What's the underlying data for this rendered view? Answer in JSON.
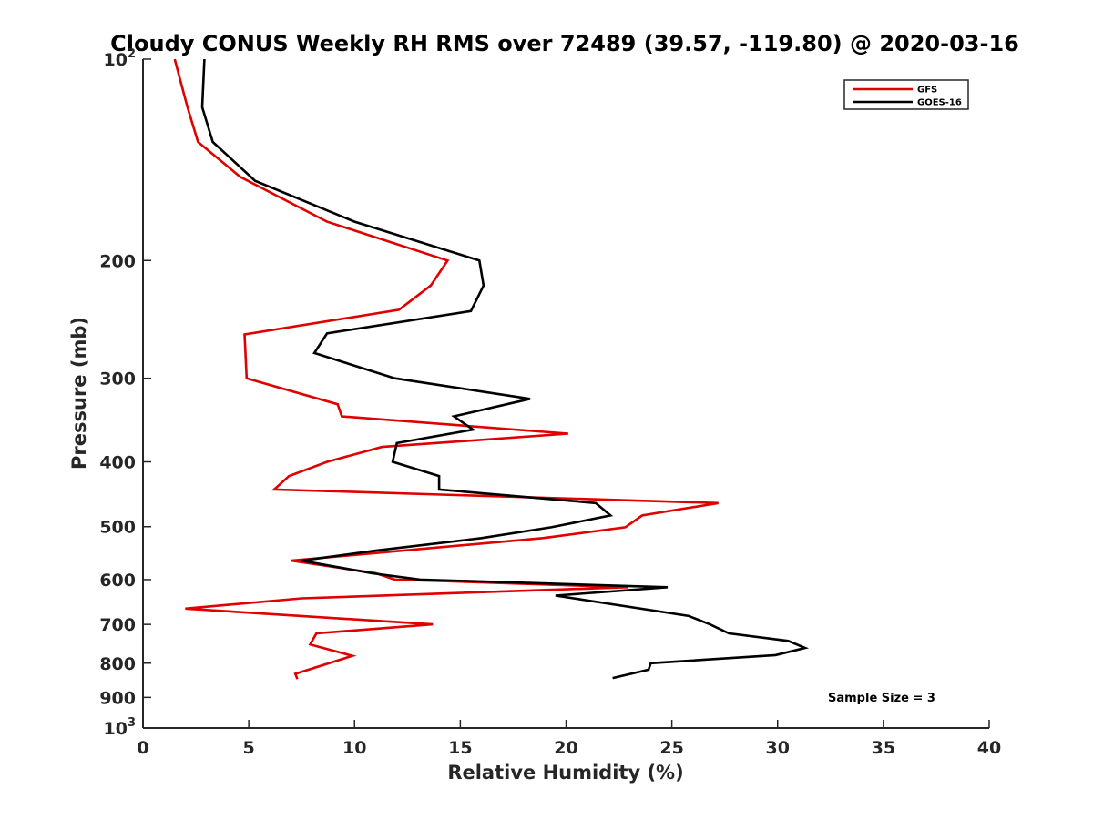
{
  "chart_data": {
    "type": "line",
    "title": "Cloudy CONUS Weekly RH RMS over 72489 (39.57, -119.80) @ 2020-03-16",
    "xlabel": "Relative Humidity (%)",
    "ylabel": "Pressure (mb)",
    "xlim": [
      0,
      40
    ],
    "ylim": [
      100,
      1000
    ],
    "y_scale": "log",
    "y_inverted": true,
    "grid": false,
    "legend_position": "top-right",
    "x_ticks": [
      "0",
      "5",
      "10",
      "15",
      "20",
      "25",
      "30",
      "35",
      "40"
    ],
    "y_ticks": [
      {
        "value": 100,
        "base": "10",
        "exp": "2"
      },
      {
        "value": 200,
        "label": "200"
      },
      {
        "value": 300,
        "label": "300"
      },
      {
        "value": 400,
        "label": "400"
      },
      {
        "value": 500,
        "label": "500"
      },
      {
        "value": 600,
        "label": "600"
      },
      {
        "value": 700,
        "label": "700"
      },
      {
        "value": 800,
        "label": "800"
      },
      {
        "value": 900,
        "label": "900"
      },
      {
        "value": 1000,
        "base": "10",
        "exp": "3"
      }
    ],
    "annotation": "Sample Size = 3",
    "series": [
      {
        "name": "GFS",
        "color": "#e00000",
        "points": [
          {
            "x": 1.5,
            "y": 100
          },
          {
            "x": 2.1,
            "y": 118
          },
          {
            "x": 2.6,
            "y": 133
          },
          {
            "x": 4.6,
            "y": 150
          },
          {
            "x": 8.7,
            "y": 175
          },
          {
            "x": 14.4,
            "y": 200
          },
          {
            "x": 13.6,
            "y": 218
          },
          {
            "x": 12.1,
            "y": 237
          },
          {
            "x": 4.8,
            "y": 258
          },
          {
            "x": 4.9,
            "y": 300
          },
          {
            "x": 9.2,
            "y": 328
          },
          {
            "x": 9.4,
            "y": 342
          },
          {
            "x": 20.1,
            "y": 363
          },
          {
            "x": 11.3,
            "y": 380
          },
          {
            "x": 8.7,
            "y": 400
          },
          {
            "x": 6.9,
            "y": 420
          },
          {
            "x": 6.2,
            "y": 440
          },
          {
            "x": 27.2,
            "y": 461
          },
          {
            "x": 23.6,
            "y": 481
          },
          {
            "x": 22.8,
            "y": 501
          },
          {
            "x": 18.9,
            "y": 520
          },
          {
            "x": 7.0,
            "y": 562
          },
          {
            "x": 11.0,
            "y": 587
          },
          {
            "x": 11.9,
            "y": 600
          },
          {
            "x": 22.9,
            "y": 616
          },
          {
            "x": 7.5,
            "y": 640
          },
          {
            "x": 2.0,
            "y": 663
          },
          {
            "x": 13.7,
            "y": 700
          },
          {
            "x": 8.2,
            "y": 722
          },
          {
            "x": 7.9,
            "y": 750
          },
          {
            "x": 9.9,
            "y": 780
          },
          {
            "x": 7.2,
            "y": 830
          },
          {
            "x": 7.3,
            "y": 845
          }
        ]
      },
      {
        "name": "GOES-16",
        "color": "#000000",
        "points": [
          {
            "x": 2.9,
            "y": 100
          },
          {
            "x": 2.8,
            "y": 118
          },
          {
            "x": 3.3,
            "y": 133
          },
          {
            "x": 5.3,
            "y": 152
          },
          {
            "x": 10.0,
            "y": 175
          },
          {
            "x": 15.9,
            "y": 200
          },
          {
            "x": 16.1,
            "y": 218
          },
          {
            "x": 15.5,
            "y": 238
          },
          {
            "x": 8.7,
            "y": 257
          },
          {
            "x": 8.1,
            "y": 275
          },
          {
            "x": 11.9,
            "y": 300
          },
          {
            "x": 18.3,
            "y": 322
          },
          {
            "x": 14.7,
            "y": 342
          },
          {
            "x": 15.6,
            "y": 358
          },
          {
            "x": 12.0,
            "y": 375
          },
          {
            "x": 11.8,
            "y": 400
          },
          {
            "x": 14.0,
            "y": 420
          },
          {
            "x": 14.0,
            "y": 440
          },
          {
            "x": 21.4,
            "y": 461
          },
          {
            "x": 22.1,
            "y": 481
          },
          {
            "x": 19.3,
            "y": 501
          },
          {
            "x": 16.0,
            "y": 520
          },
          {
            "x": 11.0,
            "y": 543
          },
          {
            "x": 7.5,
            "y": 562
          },
          {
            "x": 10.8,
            "y": 587
          },
          {
            "x": 13.1,
            "y": 600
          },
          {
            "x": 24.8,
            "y": 616
          },
          {
            "x": 19.5,
            "y": 634
          },
          {
            "x": 25.8,
            "y": 680
          },
          {
            "x": 26.8,
            "y": 700
          },
          {
            "x": 27.7,
            "y": 722
          },
          {
            "x": 30.5,
            "y": 741
          },
          {
            "x": 31.3,
            "y": 759
          },
          {
            "x": 29.9,
            "y": 778
          },
          {
            "x": 24.0,
            "y": 800
          },
          {
            "x": 23.9,
            "y": 818
          },
          {
            "x": 22.2,
            "y": 842
          }
        ]
      }
    ]
  }
}
